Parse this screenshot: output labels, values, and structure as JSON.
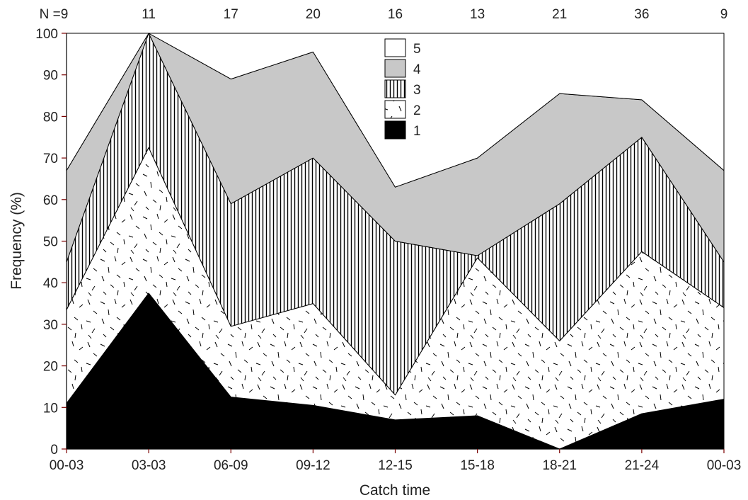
{
  "chart_data": {
    "type": "area",
    "stacked": true,
    "title": "",
    "xlabel": "Catch time",
    "ylabel": "Frequency (%)",
    "ylim": [
      0,
      100
    ],
    "yticks": [
      0,
      10,
      20,
      30,
      40,
      50,
      60,
      70,
      80,
      90,
      100
    ],
    "grid": false,
    "legend_position": "top-center",
    "categories": [
      "00-03",
      "03-03",
      "06-09",
      "09-12",
      "12-15",
      "15-18",
      "18-21",
      "21-24",
      "00-03"
    ],
    "sample_sizes": [
      "N =9",
      "11",
      "17",
      "20",
      "16",
      "13",
      "21",
      "36",
      "9"
    ],
    "series": [
      {
        "name": "1",
        "values": [
          11,
          37.5,
          12.5,
          10.5,
          7,
          8,
          0,
          8.5,
          12
        ],
        "fill": "solid-black"
      },
      {
        "name": "2",
        "values": [
          22.5,
          35,
          17,
          24.5,
          6,
          38,
          26,
          39,
          22
        ],
        "fill": "dashes"
      },
      {
        "name": "3",
        "values": [
          11.5,
          27.5,
          29.5,
          35,
          37,
          0.5,
          33,
          27.5,
          11
        ],
        "fill": "vertical-lines"
      },
      {
        "name": "4",
        "values": [
          22,
          0,
          30,
          25.5,
          13,
          23.5,
          26.5,
          9,
          22
        ],
        "fill": "gray"
      },
      {
        "name": "5",
        "values": [
          33,
          0,
          11,
          4.5,
          37,
          30,
          14.5,
          16,
          33
        ],
        "fill": "white"
      }
    ],
    "legend_order": [
      "5",
      "4",
      "3",
      "2",
      "1"
    ],
    "colors": {
      "black": "#000000",
      "gray": "#c8c8c8",
      "white": "#ffffff",
      "tick": "#7a0000"
    }
  }
}
